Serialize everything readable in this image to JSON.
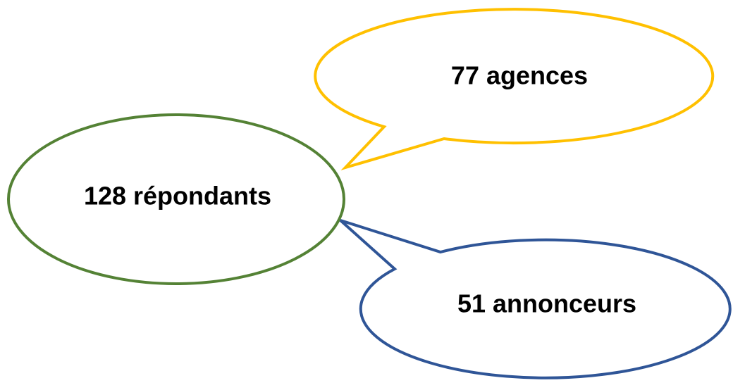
{
  "nodes": [
    {
      "label": "128 répondants"
    },
    {
      "label": "77 agences"
    },
    {
      "label": "51 annonceurs"
    }
  ]
}
